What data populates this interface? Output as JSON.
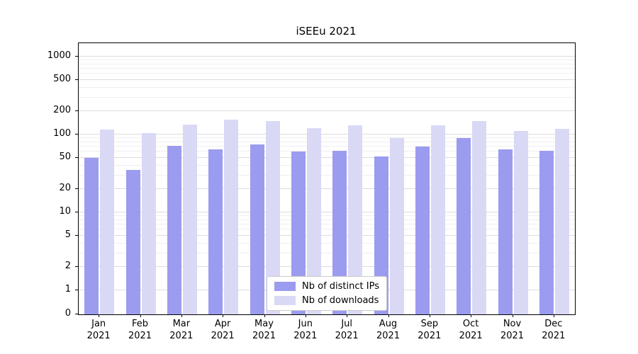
{
  "chart_data": {
    "type": "bar",
    "title": "iSEEu 2021",
    "categories": [
      "Jan",
      "Feb",
      "Mar",
      "Apr",
      "May",
      "Jun",
      "Jul",
      "Aug",
      "Sep",
      "Oct",
      "Nov",
      "Dec"
    ],
    "year": "2021",
    "series": [
      {
        "name": "Nb of distinct IPs",
        "color": "#9b9bef",
        "values": [
          50,
          35,
          72,
          65,
          75,
          60,
          62,
          52,
          70,
          90,
          65,
          62
        ]
      },
      {
        "name": "Nb of downloads",
        "color": "#d9d9f6",
        "values": [
          115,
          105,
          135,
          155,
          148,
          120,
          130,
          90,
          132,
          150,
          110,
          118
        ]
      }
    ],
    "yscale": "symlog",
    "y_ticks": [
      0,
      1,
      2,
      5,
      10,
      20,
      50,
      100,
      200,
      500,
      1000
    ],
    "ylim": [
      0,
      1280
    ],
    "grid": "horizontal",
    "legend_position": "lower center"
  }
}
